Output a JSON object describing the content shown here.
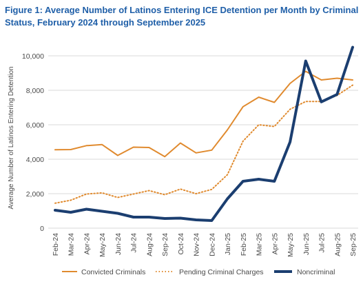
{
  "figure_title": "Figure 1: Average Number of Latinos Entering ICE Detention per Month by Criminal Status, February 2024 through September 2025",
  "colors": {
    "convicted": "#e08a2e",
    "pending": "#e08a2e",
    "noncriminal": "#1b3e70",
    "title": "#1f5fa8",
    "grid": "#d9d9d9"
  },
  "chart_data": {
    "type": "line",
    "title": "Figure 1: Average Number of Latinos Entering ICE Detention per Month by Criminal Status, February 2024 through September 2025",
    "xlabel": "",
    "ylabel": "Average Number of Latinos Entering Detention",
    "ylim": [
      0,
      10000
    ],
    "yticks": [
      0,
      2000,
      4000,
      6000,
      8000,
      10000
    ],
    "ytick_labels": [
      "0",
      "2,000",
      "4,000",
      "6,000",
      "8,000",
      "10,000"
    ],
    "grid": "horizontal",
    "legend_position": "bottom",
    "categories": [
      "Feb-24",
      "Mar-24",
      "Apr-24",
      "May-24",
      "Jun-24",
      "Jul-24",
      "Aug-24",
      "Sep-24",
      "Oct-24",
      "Nov-24",
      "Dec-24",
      "Jan-25",
      "Feb-25",
      "Mar-25",
      "Apr-25",
      "May-25",
      "Jun-25",
      "Jul-25",
      "Aug-25",
      "Sep-25"
    ],
    "series": [
      {
        "name": "Convicted Criminals",
        "style": "solid",
        "values": [
          4550,
          4560,
          4790,
          4850,
          4220,
          4700,
          4680,
          4150,
          4940,
          4370,
          4530,
          5700,
          7050,
          7600,
          7300,
          8400,
          9100,
          8600,
          8700,
          8600
        ]
      },
      {
        "name": "Pending Criminal Charges",
        "style": "dotted",
        "values": [
          1450,
          1620,
          1980,
          2050,
          1780,
          1980,
          2180,
          1940,
          2270,
          2000,
          2250,
          3100,
          5050,
          6000,
          5900,
          6900,
          7350,
          7350,
          7700,
          8300
        ]
      },
      {
        "name": "Noncriminal",
        "style": "thick",
        "values": [
          1040,
          920,
          1100,
          980,
          860,
          640,
          640,
          560,
          580,
          480,
          440,
          1700,
          2720,
          2840,
          2720,
          5000,
          9700,
          7330,
          7760,
          10500
        ]
      }
    ]
  }
}
